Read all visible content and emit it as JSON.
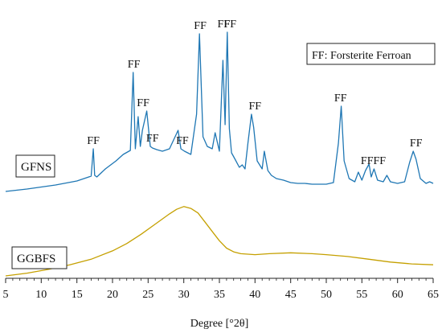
{
  "chart_data": {
    "type": "line",
    "xlabel": "Degree [°2θ]",
    "xlim": [
      5,
      65
    ],
    "xticks": [
      5,
      10,
      15,
      20,
      25,
      30,
      35,
      40,
      45,
      50,
      55,
      60,
      65
    ],
    "grid": false,
    "legend_box": "FF: Forsterite Ferroan",
    "series": [
      {
        "name": "GFNS",
        "color": "#1f77b4",
        "x": [
          5,
          8,
          12,
          15,
          17,
          17.3,
          17.5,
          17.8,
          19,
          20.5,
          21.5,
          22.5,
          22.9,
          23.2,
          23.6,
          23.9,
          24.2,
          24.8,
          25.3,
          25.6,
          26.2,
          27,
          28,
          29.2,
          29.6,
          30.1,
          31,
          31.8,
          32.2,
          32.7,
          33.3,
          34,
          34.4,
          35,
          35.5,
          35.8,
          36.1,
          36.4,
          36.7,
          37.2,
          37.8,
          38.2,
          38.6,
          39,
          39.5,
          39.8,
          40.3,
          41,
          41.3,
          41.8,
          42.3,
          43,
          44,
          45,
          46,
          47,
          48,
          49,
          50,
          51,
          51.7,
          52.1,
          52.5,
          53.2,
          54,
          54.5,
          55,
          55.5,
          56,
          56.3,
          56.7,
          57.2,
          58,
          58.5,
          59,
          60,
          61,
          61.7,
          62.2,
          62.6,
          63.2,
          64,
          64.5,
          65
        ],
        "y": [
          2,
          5,
          10,
          15,
          21,
          55,
          22,
          20,
          30,
          40,
          48,
          53,
          150,
          55,
          95,
          58,
          78,
          102,
          58,
          56,
          54,
          52,
          55,
          78,
          55,
          52,
          48,
          98,
          198,
          70,
          58,
          55,
          75,
          52,
          165,
          85,
          200,
          80,
          50,
          42,
          32,
          35,
          30,
          62,
          98,
          82,
          40,
          30,
          52,
          28,
          22,
          18,
          16,
          13,
          12,
          12,
          11,
          11,
          11,
          13,
          62,
          108,
          40,
          18,
          14,
          26,
          16,
          28,
          36,
          20,
          30,
          16,
          14,
          22,
          14,
          12,
          14,
          38,
          52,
          42,
          18,
          12,
          14,
          12
        ]
      },
      {
        "name": "GGBFS",
        "color": "#c5a000",
        "x": [
          5,
          8,
          11,
          14,
          17,
          20,
          22,
          24,
          26,
          28,
          29,
          30,
          31,
          32,
          33,
          34,
          35,
          36,
          37,
          38,
          40,
          42,
          45,
          48,
          50,
          53,
          56,
          59,
          62,
          65
        ],
        "y": [
          0,
          3,
          7,
          12,
          18,
          27,
          35,
          45,
          56,
          67,
          72,
          75,
          73,
          68,
          58,
          48,
          38,
          30,
          26,
          24,
          23,
          24,
          25,
          24,
          23,
          21,
          18,
          15,
          13,
          12
        ]
      }
    ],
    "annotations": [
      {
        "text": "FF",
        "x": 17.3
      },
      {
        "text": "FF",
        "x": 23.0
      },
      {
        "text": "FF",
        "x": 24.3
      },
      {
        "text": "FF",
        "x": 25.6
      },
      {
        "text": "FF",
        "x": 29.8
      },
      {
        "text": "FF",
        "x": 32.3
      },
      {
        "text": "FF",
        "x": 35.6
      },
      {
        "text": "FF",
        "x": 36.5
      },
      {
        "text": "FF",
        "x": 40.0
      },
      {
        "text": "FF",
        "x": 52.0
      },
      {
        "text": "FFFF",
        "x": 56.6
      },
      {
        "text": "FF",
        "x": 62.6
      }
    ]
  }
}
